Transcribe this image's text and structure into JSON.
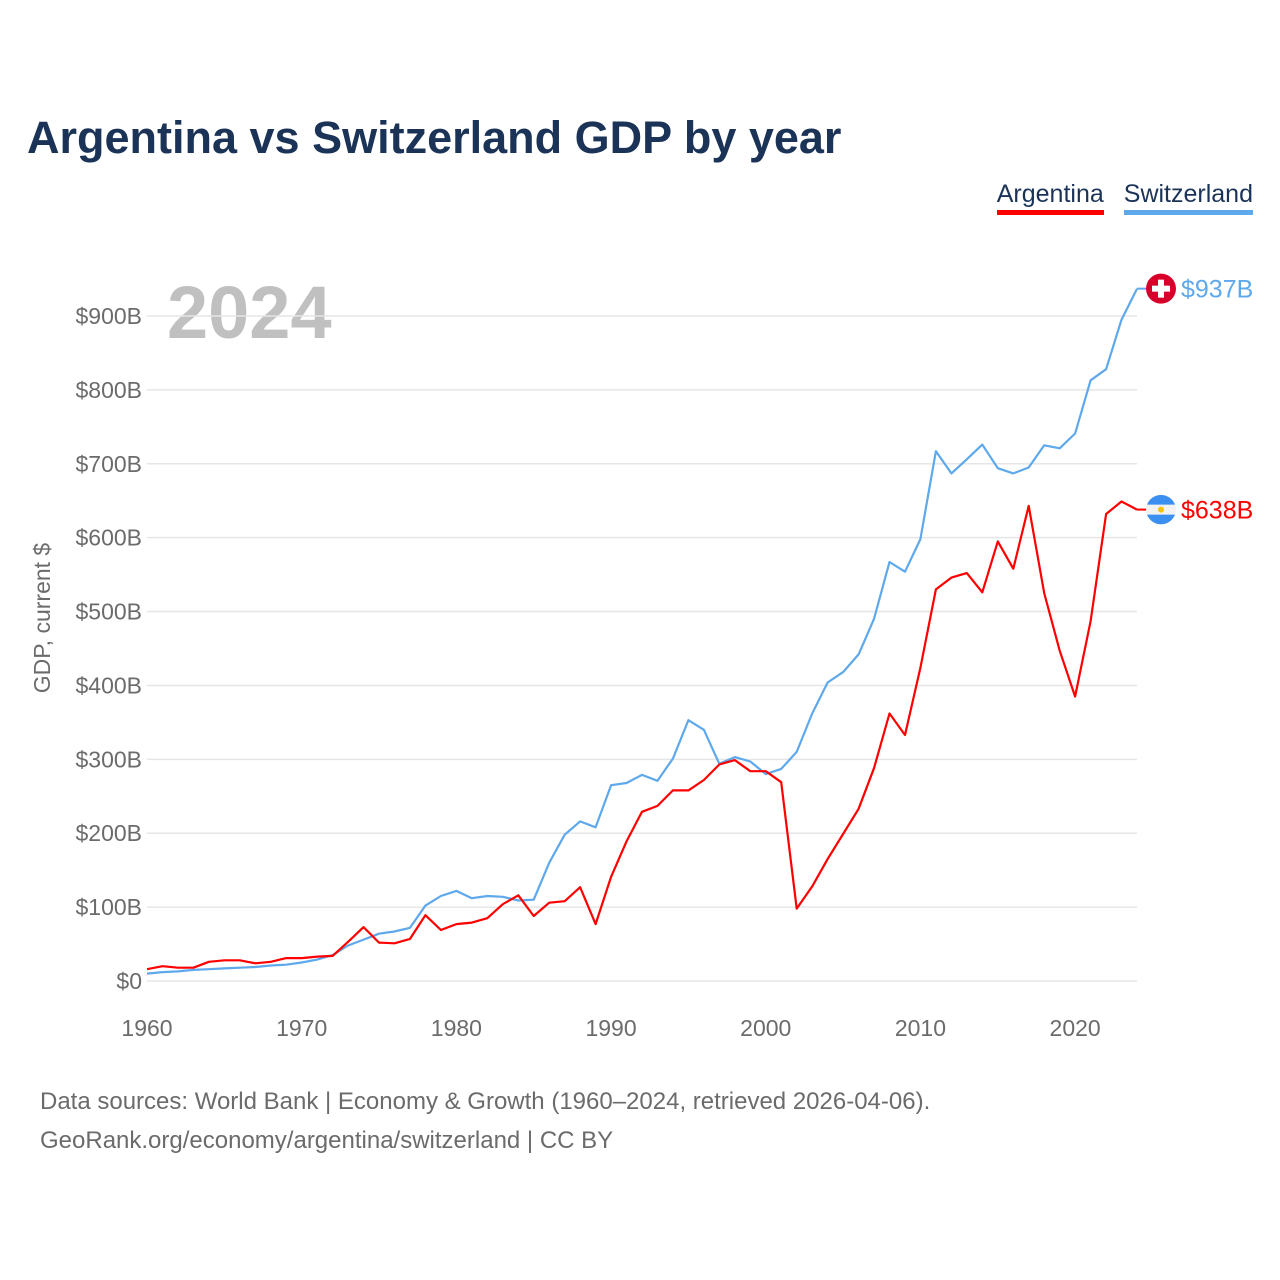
{
  "chart_data": {
    "type": "line",
    "title": "Argentina vs Switzerland GDP by year",
    "ylabel": "GDP, current $",
    "xlabel": "",
    "year_watermark": "2024",
    "ylim": [
      0,
      900
    ],
    "xlim": [
      1960,
      2024
    ],
    "y_ticks": [
      {
        "value": 0,
        "label": "$0"
      },
      {
        "value": 100,
        "label": "$100B"
      },
      {
        "value": 200,
        "label": "$200B"
      },
      {
        "value": 300,
        "label": "$300B"
      },
      {
        "value": 400,
        "label": "$400B"
      },
      {
        "value": 500,
        "label": "$500B"
      },
      {
        "value": 600,
        "label": "$600B"
      },
      {
        "value": 700,
        "label": "$700B"
      },
      {
        "value": 800,
        "label": "$800B"
      },
      {
        "value": 900,
        "label": "$900B"
      }
    ],
    "x_ticks": [
      {
        "value": 1960,
        "label": "1960"
      },
      {
        "value": 1970,
        "label": "1970"
      },
      {
        "value": 1980,
        "label": "1980"
      },
      {
        "value": 1990,
        "label": "1990"
      },
      {
        "value": 2000,
        "label": "2000"
      },
      {
        "value": 2010,
        "label": "2010"
      },
      {
        "value": 2020,
        "label": "2020"
      }
    ],
    "grid": true,
    "legend_position": "top-right",
    "x_start": 1960,
    "series": [
      {
        "name": "Argentina",
        "color": "#ff0000",
        "end_label": "$638B",
        "flag": "argentina-flag",
        "values": [
          16,
          20,
          18,
          18,
          26,
          28,
          28,
          24,
          26,
          31,
          31,
          33,
          34,
          53,
          73,
          52,
          51,
          57,
          89,
          69,
          77,
          79,
          85,
          104,
          116,
          88,
          106,
          108,
          127,
          77,
          141,
          189,
          229,
          237,
          258,
          258,
          272,
          293,
          299,
          284,
          284,
          269,
          98,
          128,
          165,
          199,
          233,
          288,
          362,
          333,
          424,
          530,
          546,
          552,
          526,
          595,
          558,
          643,
          525,
          447,
          385,
          487,
          632,
          649,
          638
        ]
      },
      {
        "name": "Switzerland",
        "color": "#5ea8ec",
        "end_label": "$937B",
        "flag": "switzerland-flag",
        "values": [
          10,
          12,
          13,
          15,
          16,
          17,
          18,
          19,
          21,
          22,
          25,
          29,
          35,
          48,
          56,
          64,
          67,
          72,
          102,
          115,
          122,
          112,
          115,
          114,
          109,
          110,
          160,
          198,
          216,
          208,
          265,
          268,
          279,
          271,
          301,
          353,
          340,
          294,
          303,
          297,
          280,
          287,
          310,
          362,
          404,
          418,
          442,
          490,
          567,
          554,
          598,
          717,
          687,
          706,
          726,
          694,
          687,
          695,
          725,
          721,
          741,
          813,
          828,
          895,
          937
        ]
      }
    ]
  },
  "source": {
    "line1": "Data sources: World Bank | Economy & Growth (1960–2024, retrieved 2026-04-06).",
    "line2": "GeoRank.org/economy/argentina/switzerland | CC BY"
  }
}
